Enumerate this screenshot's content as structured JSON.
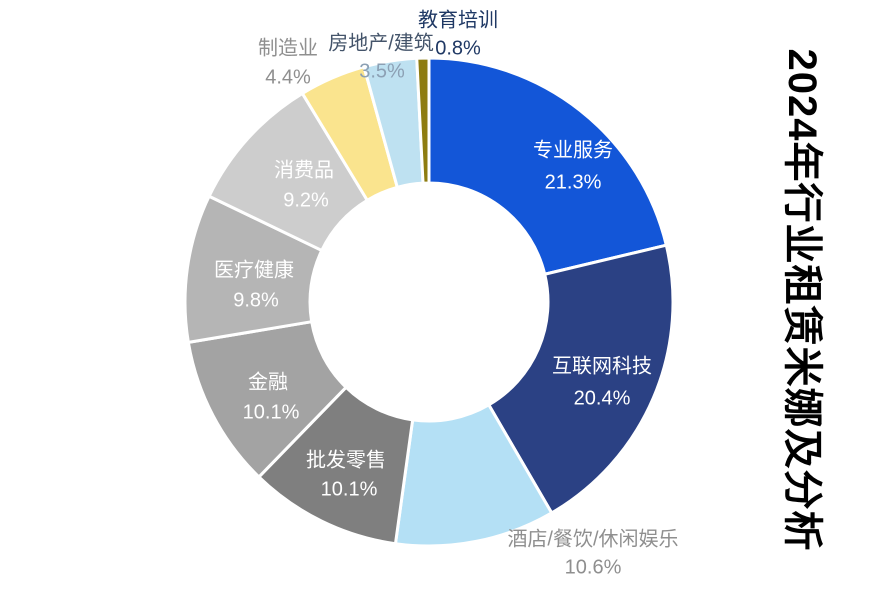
{
  "page_title": "2024年行业租赁米娜及分析",
  "chart_data": {
    "type": "pie",
    "variant": "donut",
    "title": "2024年行业租赁米娜及分析",
    "title_orientation": "vertical-right",
    "legend_position": "none",
    "direction": "clockwise",
    "start_angle_deg": 0,
    "label_format": "name + percent",
    "background_color": "#ffffff",
    "slice_gap_color": "#ffffff",
    "slices": [
      {
        "name": "专业服务",
        "value": 21.3,
        "pct_label": "21.3%",
        "color": "#1356D8",
        "label_placement": "inside",
        "label_color": "#FFFFFF"
      },
      {
        "name": "互联网科技",
        "value": 20.4,
        "pct_label": "20.4%",
        "color": "#2B4184",
        "label_placement": "inside",
        "label_color": "#FFFFFF"
      },
      {
        "name": "酒店/餐饮/休闲娱乐",
        "value": 10.6,
        "pct_label": "10.6%",
        "color": "#B4E0F5",
        "label_placement": "outside",
        "label_color": "#8F8F8F"
      },
      {
        "name": "批发零售",
        "value": 10.1,
        "pct_label": "10.1%",
        "color": "#7F7F7F",
        "label_placement": "inside",
        "label_color": "#FFFFFF"
      },
      {
        "name": "金融",
        "value": 10.1,
        "pct_label": "10.1%",
        "color": "#A3A3A3",
        "label_placement": "inside",
        "label_color": "#FFFFFF"
      },
      {
        "name": "医疗健康",
        "value": 9.8,
        "pct_label": "9.8%",
        "color": "#B5B5B5",
        "label_placement": "inside",
        "label_color": "#FFFFFF"
      },
      {
        "name": "消费品",
        "value": 9.2,
        "pct_label": "9.2%",
        "color": "#CDCDCD",
        "label_placement": "inside",
        "label_color": "#FFFFFF"
      },
      {
        "name": "制造业",
        "value": 4.4,
        "pct_label": "4.4%",
        "color": "#FAE48E",
        "label_placement": "outside",
        "label_color": "#8F8F8F"
      },
      {
        "name": "房地产/建筑",
        "value": 3.5,
        "pct_label": "3.5%",
        "color": "#BEE1F1",
        "label_placement": "outside",
        "label_color": "#44546A",
        "pct_color": "#8CA0B4"
      },
      {
        "name": "教育培训",
        "value": 0.8,
        "pct_label": "0.8%",
        "color": "#8E7C10",
        "label_placement": "outside",
        "label_color": "#1F3864"
      }
    ]
  }
}
